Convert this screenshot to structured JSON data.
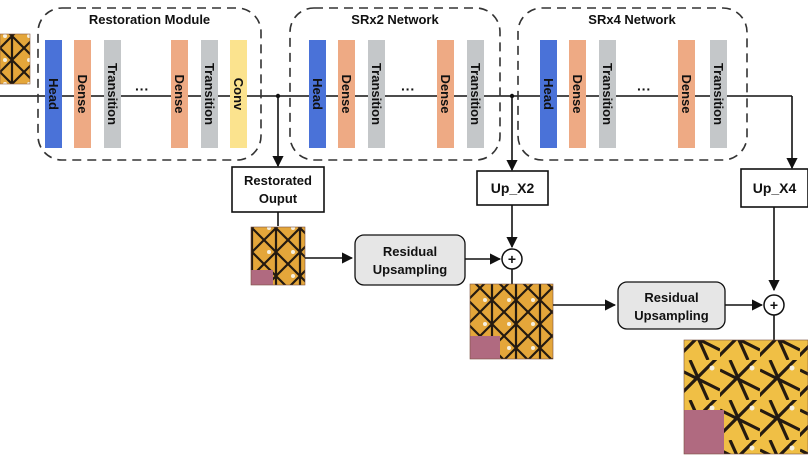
{
  "modules": {
    "restoration": {
      "title": "Restoration Module",
      "blocks": [
        "Head",
        "Dense",
        "Transition",
        "Dense",
        "Transition",
        "Conv"
      ],
      "dots": "···"
    },
    "srx2": {
      "title": "SRx2 Network",
      "blocks": [
        "Head",
        "Dense",
        "Transition",
        "Dense",
        "Transition"
      ],
      "dots": "···"
    },
    "srx4": {
      "title": "SRx4 Network",
      "blocks": [
        "Head",
        "Dense",
        "Transition",
        "Dense",
        "Transition"
      ],
      "dots": "···"
    }
  },
  "boxes": {
    "restorated_output": [
      "Restorated",
      "Ouput"
    ],
    "up_x2": "Up_X2",
    "up_x4": "Up_X4",
    "residual_upsampling_1": [
      "Residual",
      "Upsampling"
    ],
    "residual_upsampling_2": [
      "Residual",
      "Upsampling"
    ]
  },
  "operators": {
    "add_1": "+",
    "add_2": "+"
  },
  "colors": {
    "head": "#4a72d8",
    "dense": "#eeaa84",
    "transition": "#c4c7c9",
    "conv": "#fbe38e",
    "residual_box": "#e6e6e6",
    "wing_orange": "#e4a63a",
    "wing_yellow": "#f4cb55",
    "wing_black": "#241a10",
    "background_pink": "#b06a80"
  },
  "icons": [
    "butterfly-image"
  ]
}
